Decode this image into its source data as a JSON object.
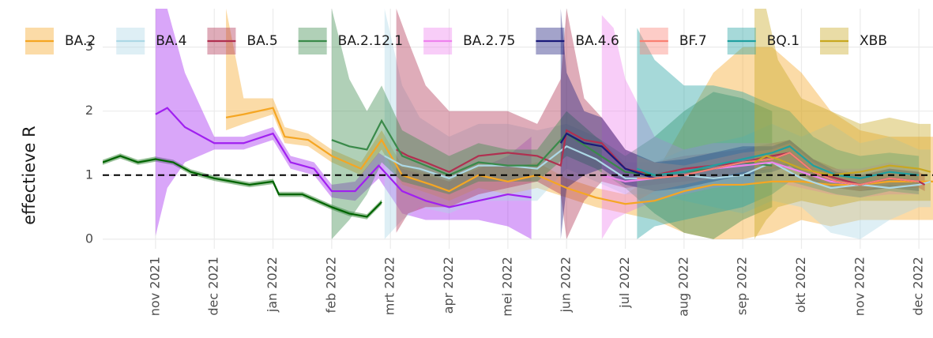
{
  "chart_data": {
    "type": "line",
    "ylabel": "effectieve R",
    "xlim": [
      -0.9,
      13.24
    ],
    "ylim": [
      -0.15,
      3.6
    ],
    "xticks": [
      {
        "value": 0,
        "label": "nov 2021"
      },
      {
        "value": 1,
        "label": "dec 2021"
      },
      {
        "value": 2,
        "label": "jan 2022"
      },
      {
        "value": 3,
        "label": "feb 2022"
      },
      {
        "value": 4,
        "label": "mrt 2022"
      },
      {
        "value": 5,
        "label": "apr 2022"
      },
      {
        "value": 6,
        "label": "mei 2022"
      },
      {
        "value": 7,
        "label": "jun 2022"
      },
      {
        "value": 8,
        "label": "jul 2022"
      },
      {
        "value": 9,
        "label": "aug 2022"
      },
      {
        "value": 10,
        "label": "sep 2022"
      },
      {
        "value": 11,
        "label": "okt 2022"
      },
      {
        "value": 12,
        "label": "nov 2022"
      },
      {
        "value": 13,
        "label": "dec 2022"
      }
    ],
    "yticks": [
      0,
      1,
      2,
      3
    ],
    "hline": 1,
    "grid": true,
    "legend": "top",
    "series": [
      {
        "color": "#006400",
        "x": [
          -0.9,
          -0.6,
          -0.3,
          0,
          0.3,
          0.6,
          1,
          1.3,
          1.6,
          2,
          2.1,
          2.5,
          3,
          3.3,
          3.6,
          3.85
        ],
        "values": [
          1.2,
          1.3,
          1.2,
          1.25,
          1.2,
          1.05,
          0.95,
          0.9,
          0.85,
          0.9,
          0.7,
          0.7,
          0.5,
          0.4,
          0.35,
          0.58
        ],
        "lower": [
          1.16,
          1.26,
          1.16,
          1.21,
          1.16,
          1.01,
          0.91,
          0.86,
          0.81,
          0.86,
          0.66,
          0.66,
          0.46,
          0.36,
          0.31,
          0.54
        ],
        "upper": [
          1.24,
          1.34,
          1.24,
          1.29,
          1.24,
          1.09,
          0.99,
          0.94,
          0.89,
          0.94,
          0.74,
          0.74,
          0.54,
          0.44,
          0.39,
          0.62
        ]
      },
      {
        "color": "#a020f0",
        "x": [
          0,
          0.2,
          0.5,
          1,
          1.5,
          2,
          2.3,
          2.7,
          3,
          3.4,
          3.8,
          4.2,
          4.6,
          5,
          5.5,
          6,
          6.4
        ],
        "values": [
          1.95,
          2.05,
          1.75,
          1.5,
          1.5,
          1.65,
          1.2,
          1.1,
          0.75,
          0.75,
          1.15,
          0.75,
          0.6,
          0.5,
          0.6,
          0.7,
          0.65
        ],
        "lower": [
          0.05,
          0.8,
          1.2,
          1.4,
          1.4,
          1.55,
          1.1,
          1.0,
          0.65,
          0.6,
          0.95,
          0.4,
          0.3,
          0.3,
          0.3,
          0.2,
          0.0
        ],
        "upper": [
          3.6,
          3.6,
          2.6,
          1.6,
          1.6,
          1.75,
          1.3,
          1.2,
          0.85,
          0.9,
          1.35,
          1.1,
          1.0,
          0.9,
          1.1,
          1.3,
          1.6
        ]
      },
      {
        "name": "BA.2",
        "color": "#f5a623",
        "x": [
          1.2,
          1.5,
          2,
          2.2,
          2.6,
          3,
          3.5,
          3.85,
          4.2,
          4.7,
          5,
          5.5,
          6,
          6.5,
          7,
          7.5,
          8,
          8.5,
          9,
          9.5,
          10,
          10.5,
          11,
          11.5,
          12,
          12.5,
          13,
          13.3
        ],
        "values": [
          1.9,
          1.95,
          2.05,
          1.6,
          1.55,
          1.3,
          1.1,
          1.55,
          1.0,
          0.85,
          0.75,
          1.0,
          0.9,
          1.0,
          0.8,
          0.65,
          0.55,
          0.6,
          0.75,
          0.85,
          0.85,
          0.9,
          0.9,
          0.85,
          0.85,
          0.9,
          0.9,
          0.9
        ],
        "lower": [
          1.7,
          1.8,
          1.95,
          1.5,
          1.45,
          1.2,
          1.0,
          1.4,
          0.85,
          0.7,
          0.6,
          0.8,
          0.7,
          0.8,
          0.65,
          0.5,
          0.4,
          0.3,
          0.1,
          0,
          0,
          0.1,
          0.3,
          0.2,
          0.3,
          0.3,
          0.3,
          0.3
        ],
        "upper": [
          3.6,
          2.2,
          2.2,
          1.75,
          1.65,
          1.4,
          1.2,
          1.7,
          1.15,
          1.0,
          0.9,
          1.2,
          1.1,
          1.2,
          0.95,
          0.8,
          0.7,
          1.0,
          1.8,
          2.6,
          3.0,
          3.0,
          2.6,
          2.0,
          1.7,
          1.6,
          1.6,
          1.6
        ]
      },
      {
        "name": "BA.4",
        "color": "#add8e6",
        "x": [
          3.9,
          4.2,
          4.5,
          5,
          5.5,
          6,
          6.5,
          7,
          7.5,
          8,
          8.5,
          9,
          9.5,
          10,
          10.5,
          11,
          11.5,
          12,
          12.5,
          13,
          13.2
        ],
        "values": [
          1.3,
          1.15,
          1.1,
          0.95,
          1.15,
          1.15,
          1.1,
          1.45,
          1.25,
          0.95,
          0.95,
          1.0,
          0.95,
          1.0,
          1.2,
          0.95,
          0.8,
          0.85,
          0.8,
          0.85,
          0.9
        ],
        "lower": [
          0,
          0.3,
          0.5,
          0.4,
          0.6,
          0.6,
          0.6,
          1.1,
          0.9,
          0.7,
          0.7,
          0.6,
          0.5,
          0.4,
          0.6,
          0.5,
          0.1,
          0,
          0.3,
          0.5,
          0.5
        ],
        "upper": [
          3.6,
          2.4,
          1.9,
          1.6,
          1.8,
          1.8,
          1.7,
          1.8,
          1.6,
          1.2,
          1.2,
          1.4,
          1.5,
          1.6,
          1.8,
          1.6,
          1.8,
          1.5,
          1.6,
          1.4,
          1.4
        ]
      },
      {
        "name": "BA.5",
        "color": "#b03050",
        "x": [
          4.1,
          4.3,
          4.6,
          5,
          5.5,
          6,
          6.5,
          6.9,
          7,
          7.3,
          7.6,
          8,
          8.5,
          9,
          9.5,
          10,
          10.5,
          10.8,
          11.2,
          11.6,
          12,
          12.5,
          13,
          13.1
        ],
        "values": [
          1.4,
          1.3,
          1.2,
          1.05,
          1.3,
          1.35,
          1.3,
          1.15,
          1.7,
          1.55,
          1.5,
          1.1,
          1.0,
          1.1,
          1.15,
          1.2,
          1.3,
          1.35,
          1.05,
          0.95,
          0.85,
          0.95,
          0.9,
          0.85
        ],
        "lower": [
          0.1,
          0.4,
          0.5,
          0.5,
          0.7,
          0.8,
          0.9,
          0.7,
          0,
          0.6,
          0.9,
          0.8,
          0.85,
          0.9,
          0.95,
          1.0,
          1.1,
          1.15,
          0.9,
          0.8,
          0.75,
          0.8,
          0.8,
          0.75
        ],
        "upper": [
          3.6,
          3.1,
          2.4,
          2.0,
          2.0,
          2.0,
          1.8,
          2.5,
          3.6,
          2.2,
          1.9,
          1.4,
          1.2,
          1.3,
          1.35,
          1.4,
          1.5,
          1.55,
          1.25,
          1.1,
          1.0,
          1.1,
          1.05,
          1.0
        ]
      },
      {
        "name": "BA.2.12.1",
        "color": "#3a8a4a",
        "x": [
          3,
          3.3,
          3.6,
          3.85,
          4.2,
          4.6,
          5,
          5.5,
          6,
          6.5,
          7,
          7.5,
          8,
          8.5,
          9,
          9.5,
          10,
          10.5
        ],
        "values": [
          1.55,
          1.45,
          1.4,
          1.85,
          1.3,
          1.15,
          1.0,
          1.2,
          1.15,
          1.15,
          1.65,
          1.35,
          1.05,
          1.0,
          1.05,
          1.1,
          1.2,
          1.15
        ],
        "lower": [
          0,
          0.3,
          0.7,
          1.2,
          0.9,
          0.8,
          0.7,
          0.9,
          0.9,
          0.9,
          1.3,
          1.1,
          0.8,
          0.4,
          0.1,
          0,
          0.3,
          0.5
        ],
        "upper": [
          3.6,
          2.5,
          2.0,
          2.4,
          1.7,
          1.5,
          1.3,
          1.5,
          1.4,
          1.4,
          2.0,
          1.6,
          1.3,
          1.6,
          2.0,
          2.3,
          2.2,
          2.0
        ]
      },
      {
        "name": "BA.2.75",
        "color": "#ee82ee",
        "x": [
          7.6,
          7.8,
          8,
          8.5,
          9,
          9.5,
          10,
          10.5,
          11,
          11.5,
          12,
          12.5,
          13
        ],
        "values": [
          1.0,
          0.95,
          0.9,
          0.95,
          1.0,
          1.1,
          1.15,
          1.2,
          1.05,
          0.9,
          0.85,
          0.95,
          0.9
        ],
        "lower": [
          0,
          0.3,
          0.4,
          0.6,
          0.7,
          0.8,
          0.85,
          0.9,
          0.8,
          0.7,
          0.65,
          0.7,
          0.7
        ],
        "upper": [
          3.5,
          3.3,
          2.5,
          1.6,
          1.4,
          1.5,
          1.5,
          1.5,
          1.3,
          1.1,
          1.1,
          1.2,
          1.1
        ]
      },
      {
        "name": "BA.4.6",
        "color": "#1a1a7a",
        "x": [
          6.9,
          7,
          7.3,
          7.6,
          8,
          8.5,
          9,
          9.5,
          10,
          10.5,
          10.8,
          11.2,
          11.6,
          12,
          12.5,
          13
        ],
        "values": [
          1.5,
          1.65,
          1.5,
          1.45,
          1.1,
          0.95,
          1.0,
          1.1,
          1.2,
          1.25,
          1.35,
          1.05,
          0.9,
          0.85,
          0.95,
          0.9
        ],
        "lower": [
          0,
          0.8,
          1.0,
          1.1,
          0.85,
          0.75,
          0.8,
          0.9,
          1.0,
          1.05,
          1.15,
          0.9,
          0.8,
          0.75,
          0.8,
          0.75
        ],
        "upper": [
          3.6,
          2.6,
          2.0,
          1.9,
          1.4,
          1.2,
          1.25,
          1.35,
          1.45,
          1.45,
          1.55,
          1.25,
          1.05,
          1.0,
          1.1,
          1.05
        ]
      },
      {
        "name": "BF.7",
        "color": "#fa8072",
        "x": [
          8.2,
          8.5,
          9,
          9.5,
          10,
          10.5,
          10.8,
          11.2,
          11.6,
          12,
          12.5,
          13
        ],
        "values": [
          0.95,
          0.95,
          1.0,
          1.1,
          1.2,
          1.25,
          1.35,
          1.05,
          0.9,
          0.85,
          0.95,
          0.9
        ],
        "lower": [
          0.6,
          0.75,
          0.85,
          0.95,
          1.05,
          1.1,
          1.2,
          0.95,
          0.8,
          0.75,
          0.85,
          0.8
        ],
        "upper": [
          1.3,
          1.2,
          1.15,
          1.25,
          1.35,
          1.4,
          1.5,
          1.2,
          1.0,
          0.95,
          1.05,
          1.0
        ]
      },
      {
        "name": "BQ.1",
        "color": "#20a0a0",
        "x": [
          8.2,
          8.5,
          9,
          9.5,
          10,
          10.5,
          10.8,
          11.2,
          11.6,
          12,
          12.5,
          13
        ],
        "values": [
          1.1,
          1.0,
          1.05,
          1.15,
          1.25,
          1.35,
          1.45,
          1.15,
          1.0,
          0.95,
          1.05,
          1.0
        ],
        "lower": [
          0,
          0.2,
          0.3,
          0.4,
          0.5,
          0.7,
          0.9,
          0.8,
          0.7,
          0.65,
          0.75,
          0.7
        ],
        "upper": [
          3.3,
          2.8,
          2.4,
          2.4,
          2.3,
          2.1,
          2.0,
          1.6,
          1.4,
          1.3,
          1.35,
          1.3
        ]
      },
      {
        "name": "XBB",
        "color": "#c8a820",
        "x": [
          10.2,
          10.4,
          10.6,
          11,
          11.5,
          12,
          12.5,
          13,
          13.2
        ],
        "values": [
          1.2,
          1.3,
          1.25,
          1.1,
          1.0,
          1.05,
          1.15,
          1.1,
          1.05
        ],
        "lower": [
          0,
          0.3,
          0.5,
          0.6,
          0.5,
          0.6,
          0.6,
          0.6,
          0.6
        ],
        "upper": [
          3.6,
          3.6,
          2.8,
          2.2,
          2.0,
          1.8,
          1.9,
          1.8,
          1.8
        ]
      }
    ]
  }
}
